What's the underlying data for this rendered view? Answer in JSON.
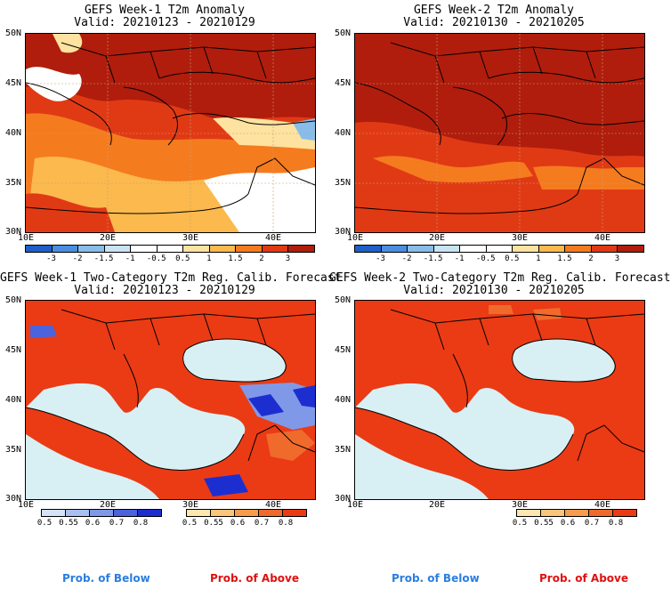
{
  "panels": {
    "p1": {
      "title": "GEFS Week-1 T2m Anomaly",
      "valid": "Valid: 20210123 - 20210129"
    },
    "p2": {
      "title": "GEFS Week-2 T2m Anomaly",
      "valid": "Valid: 20210130 - 20210205"
    },
    "p3": {
      "title": "GEFS Week-1 Two-Category T2m Reg. Calib. Forecast",
      "valid": "Valid: 20210123 - 20210129"
    },
    "p4": {
      "title": "GEFS Week-2 Two-Category T2m Reg. Calib. Forecast",
      "valid": "Valid: 20210130 - 20210205"
    }
  },
  "axes": {
    "lat": [
      "50N",
      "45N",
      "40N",
      "35N",
      "30N"
    ],
    "lon": [
      "10E",
      "20E",
      "30E",
      "40E"
    ]
  },
  "anomaly_colorbar": {
    "ticks": [
      "-3",
      "-2",
      "-1.5",
      "-1",
      "-0.5",
      "0.5",
      "1",
      "1.5",
      "2",
      "3"
    ],
    "colors": [
      "#1f5fc8",
      "#4a8ee0",
      "#87bde8",
      "#c8e4f4",
      "#ffffff",
      "#ffffff",
      "#fde2a0",
      "#fbb94e",
      "#f57b1f",
      "#e03a15",
      "#b01d0d"
    ]
  },
  "prob_below_colorbar": {
    "ticks": [
      "0.5",
      "0.55",
      "0.6",
      "0.7",
      "0.8"
    ],
    "colors": [
      "#d6e2f8",
      "#a9bff0",
      "#7f99e8",
      "#4b63dd",
      "#1d2ed1"
    ]
  },
  "prob_above_colorbar": {
    "ticks": [
      "0.5",
      "0.55",
      "0.6",
      "0.7",
      "0.8"
    ],
    "colors": [
      "#fde6b0",
      "#fbc57a",
      "#f79b4d",
      "#f06a2c",
      "#ea3b15"
    ]
  },
  "footer": {
    "left_below": "Prob. of Below",
    "left_above": "Prob. of Above",
    "right_below": "Prob. of Below",
    "right_above": "Prob. of Above"
  },
  "colors": {
    "sea": "#d8f0f4",
    "above_fill": "#ea3b15",
    "anom_dark": "#b01d0d",
    "anom_mid": "#e03a15",
    "below_text": "#2a7de0",
    "above_text": "#e01010"
  }
}
